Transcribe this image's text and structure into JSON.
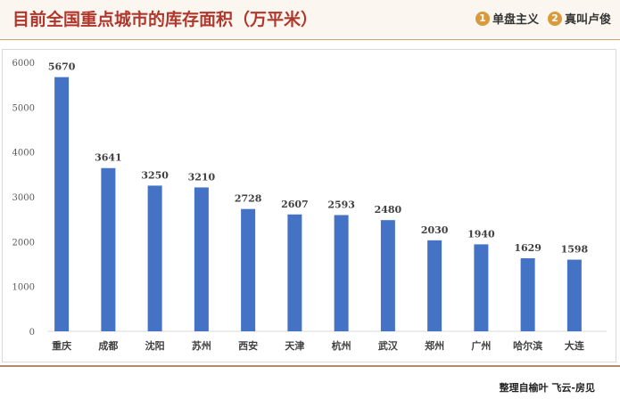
{
  "header": {
    "title": "目前全国重点城市的库存面积（万平米）",
    "logos": [
      {
        "mark": "1",
        "label": "单盘主义"
      },
      {
        "mark": "2",
        "label": "真叫卢俊"
      }
    ]
  },
  "footer": {
    "source": "整理自榆叶 飞云-房见"
  },
  "colors": {
    "bar": "#4472c4",
    "title": "#b1362c"
  },
  "chart_data": {
    "type": "bar",
    "title": "",
    "xlabel": "",
    "ylabel": "",
    "ylim": [
      0,
      6000
    ],
    "yticks": [
      0,
      1000,
      2000,
      3000,
      4000,
      5000,
      6000
    ],
    "grid": false,
    "categories": [
      "重庆",
      "成都",
      "沈阳",
      "苏州",
      "西安",
      "天津",
      "杭州",
      "武汉",
      "郑州",
      "广州",
      "哈尔滨",
      "大连"
    ],
    "values": [
      5670,
      3641,
      3250,
      3210,
      2728,
      2607,
      2593,
      2480,
      2030,
      1940,
      1629,
      1598
    ]
  }
}
